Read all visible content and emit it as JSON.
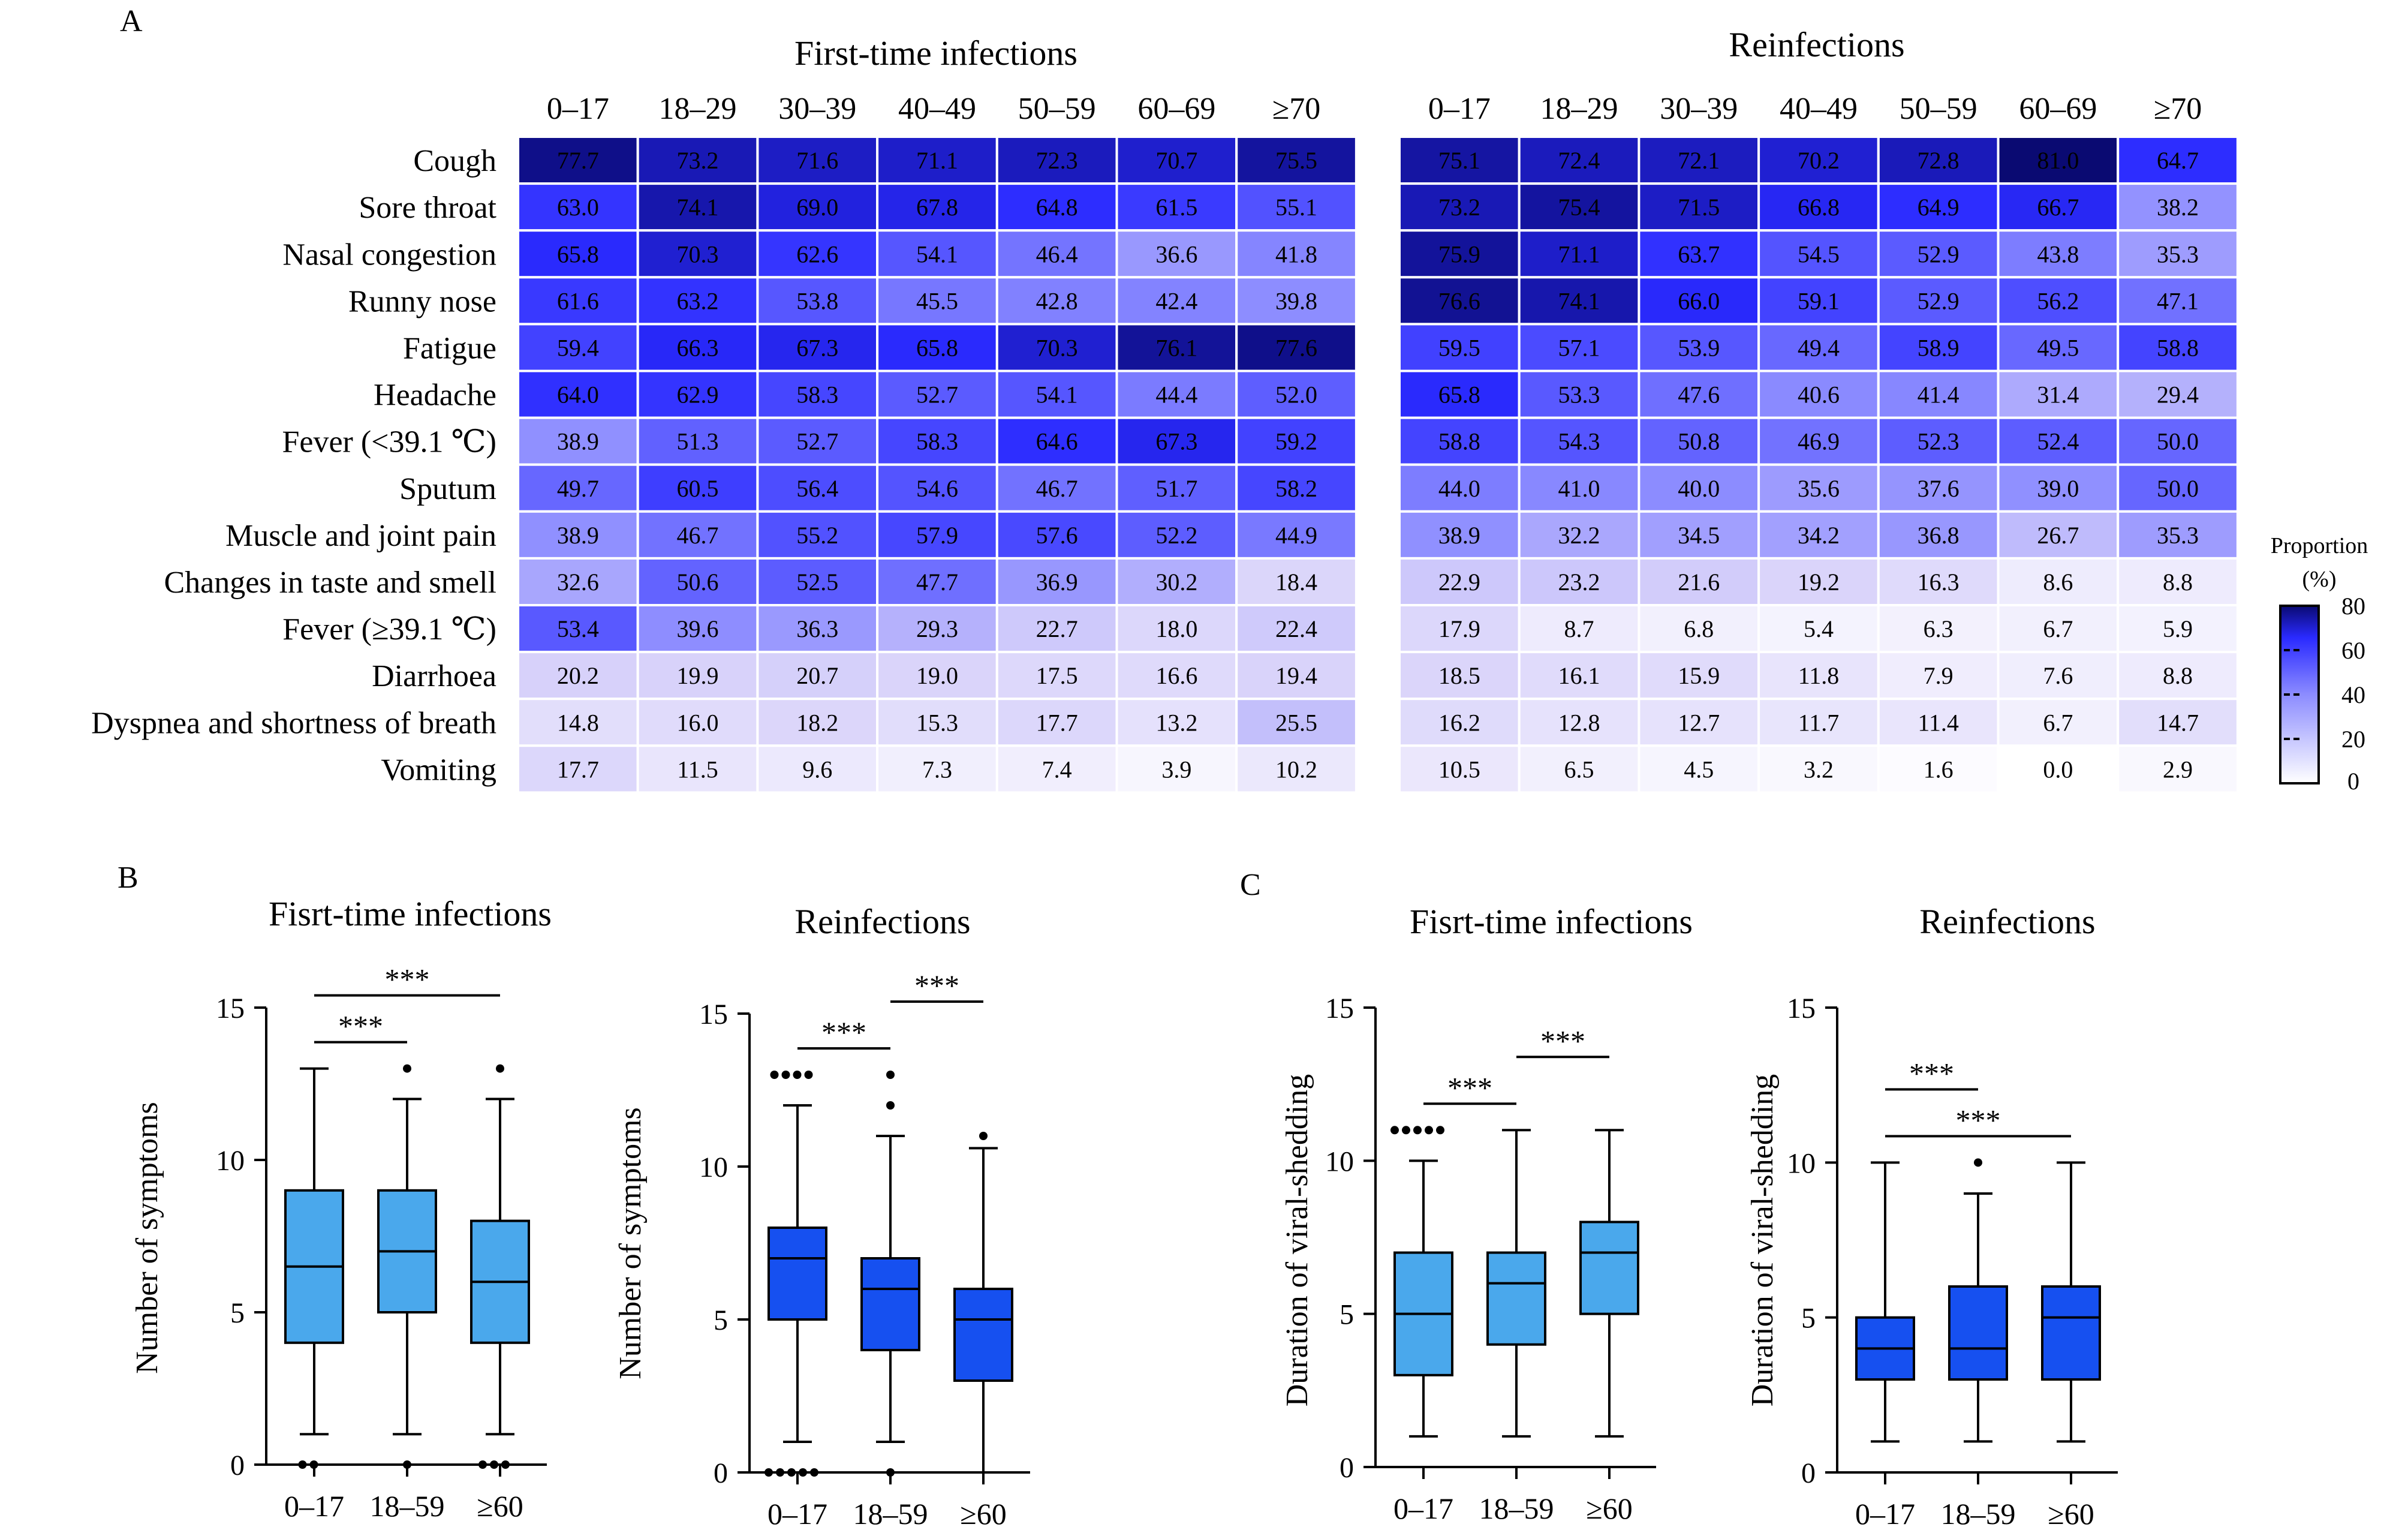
{
  "panels": {
    "A": "A",
    "B": "B",
    "C": "C"
  },
  "legend": {
    "title_line1": "Proportion",
    "title_line2": "(%)",
    "ticks": [
      "80",
      "60",
      "40",
      "20",
      "0"
    ],
    "colors": {
      "low": "#ffffff",
      "mid": "#3a3aff",
      "high": "#0a0a72"
    }
  },
  "chart_data": [
    {
      "type": "heatmap",
      "title": "First-time infections",
      "columns": [
        "0–17",
        "18–29",
        "30–39",
        "40–49",
        "50–59",
        "60–69",
        "≥70"
      ],
      "rows": [
        "Cough",
        "Sore throat",
        "Nasal congestion",
        "Runny nose",
        "Fatigue",
        "Headache",
        "Fever (<39.1 ℃)",
        "Sputum",
        "Muscle and joint pain",
        "Changes in taste and smell",
        "Fever (≥39.1 ℃)",
        "Diarrhoea",
        "Dyspnea and shortness of breath",
        "Vomiting"
      ],
      "values": [
        [
          77.7,
          73.2,
          71.6,
          71.1,
          72.3,
          70.7,
          75.5
        ],
        [
          63.0,
          74.1,
          69.0,
          67.8,
          64.8,
          61.5,
          55.1
        ],
        [
          65.8,
          70.3,
          62.6,
          54.1,
          46.4,
          36.6,
          41.8
        ],
        [
          61.6,
          63.2,
          53.8,
          45.5,
          42.8,
          42.4,
          39.8
        ],
        [
          59.4,
          66.3,
          67.3,
          65.8,
          70.3,
          76.1,
          77.6
        ],
        [
          64.0,
          62.9,
          58.3,
          52.7,
          54.1,
          44.4,
          52.0
        ],
        [
          38.9,
          51.3,
          52.7,
          58.3,
          64.6,
          67.3,
          59.2
        ],
        [
          49.7,
          60.5,
          56.4,
          54.6,
          46.7,
          51.7,
          58.2
        ],
        [
          38.9,
          46.7,
          55.2,
          57.9,
          57.6,
          52.2,
          44.9
        ],
        [
          32.6,
          50.6,
          52.5,
          47.7,
          36.9,
          30.2,
          18.4
        ],
        [
          53.4,
          39.6,
          36.3,
          29.3,
          22.7,
          18.0,
          22.4
        ],
        [
          20.2,
          19.9,
          20.7,
          19.0,
          17.5,
          16.6,
          19.4
        ],
        [
          14.8,
          16.0,
          18.2,
          15.3,
          17.7,
          13.2,
          25.5
        ],
        [
          17.7,
          11.5,
          9.6,
          7.3,
          7.4,
          3.9,
          10.2
        ]
      ],
      "value_labels": [
        [
          "77.7",
          "73.2",
          "71.6",
          "71.1",
          "72.3",
          "70.7",
          "75.5"
        ],
        [
          "63.0",
          "74.1",
          "69.0",
          "67.8",
          "64.8",
          "61.5",
          "55.1"
        ],
        [
          "65.8",
          "70.3",
          "62.6",
          "54.1",
          "46.4",
          "36.6",
          "41.8"
        ],
        [
          "61.6",
          "63.2",
          "53.8",
          "45.5",
          "42.8",
          "42.4",
          "39.8"
        ],
        [
          "59.4",
          "66.3",
          "67.3",
          "65.8",
          "70.3",
          "76.1",
          "77.6"
        ],
        [
          "64.0",
          "62.9",
          "58.3",
          "52.7",
          "54.1",
          "44.4",
          "52.0"
        ],
        [
          "38.9",
          "51.3",
          "52.7",
          "58.3",
          "64.6",
          "67.3",
          "59.2"
        ],
        [
          "49.7",
          "60.5",
          "56.4",
          "54.6",
          "46.7",
          "51.7",
          "58.2"
        ],
        [
          "38.9",
          "46.7",
          "55.2",
          "57.9",
          "57.6",
          "52.2",
          "44.9"
        ],
        [
          "32.6",
          "50.6",
          "52.5",
          "47.7",
          "36.9",
          "30.2",
          "18.4"
        ],
        [
          "53.4",
          "39.6",
          "36.3",
          "29.3",
          "22.7",
          "18.0",
          "22.4"
        ],
        [
          "20.2",
          "19.9",
          "20.7",
          "19.0",
          "17.5",
          "16.6",
          "19.4"
        ],
        [
          "14.8",
          "16.0",
          "18.2",
          "15.3",
          "17.7",
          "13.2",
          "25.5"
        ],
        [
          "17.7",
          "11.5",
          "9.6",
          "7.3",
          "7.4",
          "3.9",
          "10.2"
        ]
      ]
    },
    {
      "type": "heatmap",
      "title": "Reinfections",
      "columns": [
        "0–17",
        "18–29",
        "30–39",
        "40–49",
        "50–59",
        "60–69",
        "≥70"
      ],
      "rows": [
        "Cough",
        "Sore throat",
        "Nasal congestion",
        "Runny nose",
        "Fatigue",
        "Headache",
        "Fever (<39.1 ℃)",
        "Sputum",
        "Muscle and joint pain",
        "Changes in taste and smell",
        "Fever (≥39.1 ℃)",
        "Diarrhoea",
        "Dyspnea and shortness of breath",
        "Vomiting"
      ],
      "values": [
        [
          75.1,
          72.4,
          72.1,
          70.2,
          72.8,
          81.0,
          64.7
        ],
        [
          73.2,
          75.4,
          71.5,
          66.8,
          64.9,
          66.7,
          38.2
        ],
        [
          75.9,
          71.1,
          63.7,
          54.5,
          52.9,
          43.8,
          35.3
        ],
        [
          76.6,
          74.1,
          66.0,
          59.1,
          52.9,
          56.2,
          47.1
        ],
        [
          59.5,
          57.1,
          53.9,
          49.4,
          58.9,
          49.5,
          58.8
        ],
        [
          65.8,
          53.3,
          47.6,
          40.6,
          41.4,
          31.4,
          29.4
        ],
        [
          58.8,
          54.3,
          50.8,
          46.9,
          52.3,
          52.4,
          50.0
        ],
        [
          44.0,
          41.0,
          40.0,
          35.6,
          37.6,
          39.0,
          50.0
        ],
        [
          38.9,
          32.2,
          34.5,
          34.2,
          36.8,
          26.7,
          35.3
        ],
        [
          22.9,
          23.2,
          21.6,
          19.2,
          16.3,
          8.6,
          8.8
        ],
        [
          17.9,
          8.7,
          6.8,
          5.4,
          6.3,
          6.7,
          5.9
        ],
        [
          18.5,
          16.1,
          15.9,
          11.8,
          7.9,
          7.6,
          8.8
        ],
        [
          16.2,
          12.8,
          12.7,
          11.7,
          11.4,
          6.7,
          14.7
        ],
        [
          10.5,
          6.5,
          4.5,
          3.2,
          1.6,
          0.0,
          2.9
        ]
      ],
      "value_labels": [
        [
          "75.1",
          "72.4",
          "72.1",
          "70.2",
          "72.8",
          "81.0",
          "64.7"
        ],
        [
          "73.2",
          "75.4",
          "71.5",
          "66.8",
          "64.9",
          "66.7",
          "38.2"
        ],
        [
          "75.9",
          "71.1",
          "63.7",
          "54.5",
          "52.9",
          "43.8",
          "35.3"
        ],
        [
          "76.6",
          "74.1",
          "66.0",
          "59.1",
          "52.9",
          "56.2",
          "47.1"
        ],
        [
          "59.5",
          "57.1",
          "53.9",
          "49.4",
          "58.9",
          "49.5",
          "58.8"
        ],
        [
          "65.8",
          "53.3",
          "47.6",
          "40.6",
          "41.4",
          "31.4",
          "29.4"
        ],
        [
          "58.8",
          "54.3",
          "50.8",
          "46.9",
          "52.3",
          "52.4",
          "50.0"
        ],
        [
          "44.0",
          "41.0",
          "40.0",
          "35.6",
          "37.6",
          "39.0",
          "50.0"
        ],
        [
          "38.9",
          "32.2",
          "34.5",
          "34.2",
          "36.8",
          "26.7",
          "35.3"
        ],
        [
          "22.9",
          "23.2",
          "21.6",
          "19.2",
          "16.3",
          "8.6",
          "8.8"
        ],
        [
          "17.9",
          "8.7",
          "6.8",
          "5.4",
          "6.3",
          "6.7",
          "5.9"
        ],
        [
          "18.5",
          "16.1",
          "15.9",
          "11.8",
          "7.9",
          "7.6",
          "8.8"
        ],
        [
          "16.2",
          "12.8",
          "12.7",
          "11.7",
          "11.4",
          "6.7",
          "14.7"
        ],
        [
          "10.5",
          "6.5",
          "4.5",
          "3.2",
          "1.6",
          "0.0",
          "2.9"
        ]
      ]
    },
    {
      "type": "box",
      "title": "Fisrt-time infections",
      "ylabel": "Number of symptoms",
      "ylim": [
        0,
        15
      ],
      "yticks": [
        "0",
        "5",
        "10",
        "15"
      ],
      "fill": "#4aa8ec",
      "categories": [
        "0–17",
        "18–59",
        "≥60"
      ],
      "boxes": [
        {
          "min": 1,
          "q1": 4,
          "median": 6.5,
          "q3": 9,
          "max": 13,
          "outliers": [
            0,
            0
          ]
        },
        {
          "min": 1,
          "q1": 5,
          "median": 7,
          "q3": 9,
          "max": 12,
          "outliers": [
            13,
            0
          ]
        },
        {
          "min": 1,
          "q1": 4,
          "median": 6,
          "q3": 8,
          "max": 12,
          "outliers": [
            13,
            0,
            0,
            0
          ]
        }
      ],
      "significance": [
        {
          "from": 0,
          "to": 1,
          "label": "***",
          "level": 0
        },
        {
          "from": 0,
          "to": 2,
          "label": "***",
          "level": 1
        }
      ]
    },
    {
      "type": "box",
      "title": "Reinfections",
      "ylabel": "Number of symptoms",
      "ylim": [
        0,
        15
      ],
      "yticks": [
        "0",
        "5",
        "10",
        "15"
      ],
      "fill": "#1650f0",
      "categories": [
        "0–17",
        "18–59",
        "≥60"
      ],
      "boxes": [
        {
          "min": 1,
          "q1": 5,
          "median": 7,
          "q3": 8,
          "max": 12,
          "outliers": [
            13,
            13,
            13,
            13,
            0,
            0,
            0,
            0,
            0
          ]
        },
        {
          "min": 1,
          "q1": 4,
          "median": 6,
          "q3": 7,
          "max": 11,
          "outliers": [
            13,
            12,
            0
          ]
        },
        {
          "min": 0,
          "q1": 3,
          "median": 5,
          "q3": 6,
          "max": 10.6,
          "outliers": [
            11
          ]
        }
      ],
      "significance": [
        {
          "from": 0,
          "to": 1,
          "label": "***",
          "level": 0
        },
        {
          "from": 1,
          "to": 2,
          "label": "***",
          "level": 1
        }
      ]
    },
    {
      "type": "box",
      "title": "Fisrt-time infections",
      "ylabel": "Duration of viral-shedding",
      "ylim": [
        0,
        15
      ],
      "yticks": [
        "0",
        "5",
        "10",
        "15"
      ],
      "fill": "#4aa8ec",
      "categories": [
        "0–17",
        "18–59",
        "≥60"
      ],
      "boxes": [
        {
          "min": 1,
          "q1": 3,
          "median": 5,
          "q3": 7,
          "max": 10,
          "outliers": [
            11,
            11,
            11,
            11,
            11
          ]
        },
        {
          "min": 1,
          "q1": 4,
          "median": 6,
          "q3": 7,
          "max": 11,
          "outliers": []
        },
        {
          "min": 1,
          "q1": 5,
          "median": 7,
          "q3": 8,
          "max": 11,
          "outliers": []
        }
      ],
      "significance": [
        {
          "from": 0,
          "to": 1,
          "label": "***",
          "level": 0
        },
        {
          "from": 1,
          "to": 2,
          "label": "***",
          "level": 1
        }
      ]
    },
    {
      "type": "box",
      "title": "Reinfections",
      "ylabel": "Duration of viral-shedding",
      "ylim": [
        0,
        15
      ],
      "yticks": [
        "0",
        "5",
        "10",
        "15"
      ],
      "fill": "#1650f0",
      "categories": [
        "0–17",
        "18–59",
        "≥60"
      ],
      "boxes": [
        {
          "min": 1,
          "q1": 3,
          "median": 4,
          "q3": 5,
          "max": 10,
          "outliers": []
        },
        {
          "min": 1,
          "q1": 3,
          "median": 4,
          "q3": 6,
          "max": 9,
          "outliers": [
            10
          ]
        },
        {
          "min": 1,
          "q1": 3,
          "median": 5,
          "q3": 6,
          "max": 10,
          "outliers": []
        }
      ],
      "significance": [
        {
          "from": 0,
          "to": 1,
          "label": "***",
          "level": 1
        },
        {
          "from": 0,
          "to": 2,
          "label": "***",
          "level": 0
        }
      ]
    }
  ]
}
